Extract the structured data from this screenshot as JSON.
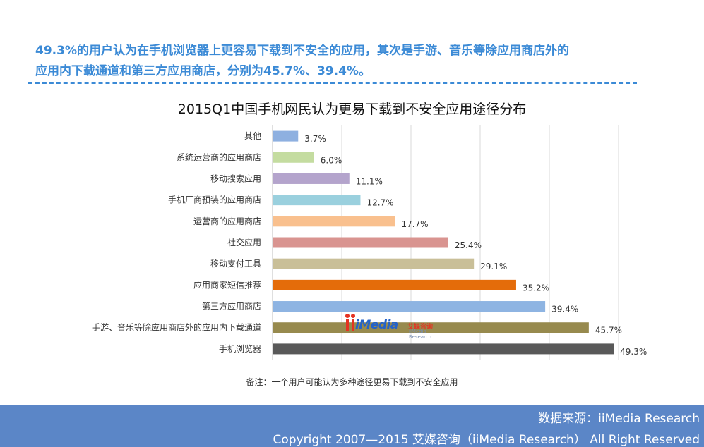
{
  "headline": {
    "line1": "49.3%的用户认为在手机浏览器上更容易下载到不安全的应用，其次是手游、音乐等除应用商店外的",
    "line2": "应用内下载通道和第三方应用商店，分别为45.7%、39.4%。"
  },
  "chart_data": {
    "type": "bar",
    "orientation": "horizontal",
    "title": "2015Q1中国手机网民认为更易下载到不安全应用途径分布",
    "xlabel": "",
    "ylabel": "",
    "xlim": [
      0,
      50
    ],
    "grid": true,
    "categories": [
      "其他",
      "系统运营商的应用商店",
      "移动搜索应用",
      "手机厂商预装的应用商店",
      "运营商的应用商店",
      "社交应用",
      "移动支付工具",
      "应用商家短信推荐",
      "第三方应用商店",
      "手游、音乐等除应用商店外的应用内下载通道",
      "手机浏览器"
    ],
    "values": [
      3.7,
      6.0,
      11.1,
      12.7,
      17.7,
      25.4,
      29.1,
      35.2,
      39.4,
      45.7,
      49.3
    ],
    "value_labels": [
      "3.7%",
      "6.0%",
      "11.1%",
      "12.7%",
      "17.7%",
      "25.4%",
      "29.1%",
      "35.2%",
      "39.4%",
      "45.7%",
      "49.3%"
    ],
    "colors": [
      "#8eb0e0",
      "#c4dca0",
      "#b4a4cc",
      "#9ad0de",
      "#f9c08e",
      "#d99490",
      "#c9bf98",
      "#e46c0a",
      "#8eb4e2",
      "#978a4e",
      "#595959"
    ],
    "note": "备注：一个用户可能认为多种途径更易下载到不安全应用"
  },
  "logo": {
    "main": "iMedia",
    "cn": "艾媒咨询",
    "sub": "iiMedia Research"
  },
  "footer": {
    "source": "数据来源：iiMedia Research",
    "copyright": "Copyright 2007—2015 艾媒咨询（iiMedia Research） All Right Reserved"
  }
}
